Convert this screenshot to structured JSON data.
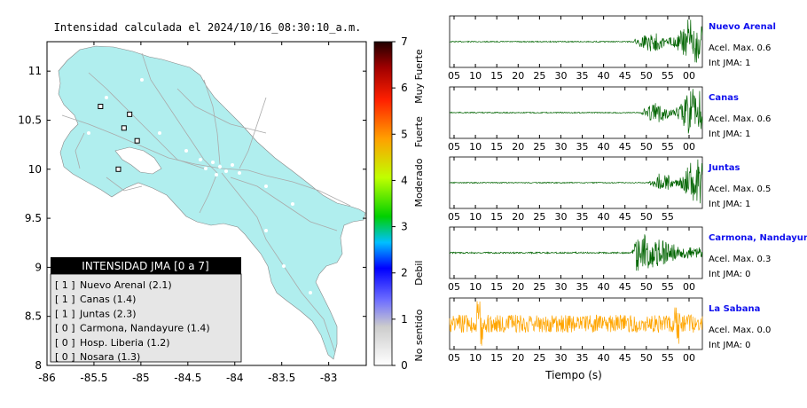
{
  "map": {
    "title": "Intensidad calculada el 2024/10/16_08:30:10_a.m.",
    "lon_ticks": [
      "-86",
      "-85.5",
      "-85",
      "-84.5",
      "-84",
      "-83.5",
      "-83"
    ],
    "lat_ticks": [
      "11",
      "10.5",
      "10",
      "9.5",
      "9",
      "8.5",
      "8"
    ],
    "colors": {
      "land": "#b0eeee",
      "roads": "#aaaaaa",
      "legend_header_bg": "#000000",
      "legend_bg": "#e6e6e6"
    },
    "legend": {
      "header": "INTENSIDAD JMA [0 a 7]",
      "items": [
        {
          "code": "[ 1 ]",
          "label": "Nuevo Arenal (2.1)"
        },
        {
          "code": "[ 1 ]",
          "label": "Canas (1.4)"
        },
        {
          "code": "[ 1 ]",
          "label": "Juntas (2.3)"
        },
        {
          "code": "[ 0 ]",
          "label": "Carmona, Nandayure (1.4)"
        },
        {
          "code": "[ 0 ]",
          "label": "Hosp. Liberia (1.2)"
        },
        {
          "code": "[ 0 ]",
          "label": "Nosara (1.3)"
        }
      ]
    }
  },
  "colorbar": {
    "ticks": [
      "0",
      "1",
      "2",
      "3",
      "4",
      "5",
      "6",
      "7"
    ],
    "categories": [
      "No sentido",
      "Debil",
      "Moderado",
      "Fuerte",
      "Muy Fuerte"
    ]
  },
  "seismograms": {
    "xlabel": "Tiempo (s)",
    "stations": [
      {
        "name": "Nuevo Arenal",
        "acel": "Acel. Max. 0.6",
        "int": "Int JMA: 1",
        "color": "#006400",
        "ticks": [
          "05",
          "10",
          "15",
          "20",
          "25",
          "30",
          "35",
          "40",
          "45",
          "50",
          "55",
          "00"
        ],
        "onset": 0.73,
        "noise": 0.02,
        "peak": 0.95
      },
      {
        "name": "Canas",
        "acel": "Acel. Max. 0.6",
        "int": "Int JMA: 1",
        "color": "#006400",
        "ticks": [
          "05",
          "10",
          "15",
          "20",
          "25",
          "30",
          "35",
          "40",
          "45",
          "50",
          "55",
          "00"
        ],
        "onset": 0.76,
        "noise": 0.02,
        "peak": 0.95
      },
      {
        "name": "Juntas",
        "acel": "Acel. Max. 0.5",
        "int": "Int JMA: 1",
        "color": "#006400",
        "ticks": [
          "05",
          "10",
          "15",
          "20",
          "25",
          "30",
          "35",
          "40",
          "45",
          "50",
          "55"
        ],
        "onset": 0.79,
        "noise": 0.02,
        "peak": 0.95
      },
      {
        "name": "Carmona, Nandayure",
        "acel": "Acel. Max. 0.3",
        "int": "Int JMA: 0",
        "color": "#006400",
        "ticks": [
          "05",
          "10",
          "15",
          "20",
          "25",
          "30",
          "35",
          "40",
          "45",
          "50",
          "55",
          "00"
        ],
        "onset": 0.72,
        "noise": 0.03,
        "peak": 0.8
      },
      {
        "name": "La Sabana",
        "acel": "Acel. Max. 0.0",
        "int": "Int JMA: 0",
        "color": "#ffa500",
        "ticks": [
          "05",
          "10",
          "15",
          "20",
          "25",
          "30",
          "35",
          "40",
          "45",
          "50",
          "55",
          "00"
        ],
        "onset": -1,
        "noise": 0.35,
        "peak": 0.35
      }
    ]
  },
  "chart_data": [
    {
      "type": "scatter",
      "title": "Intensidad calculada el 2024/10/16_08:30:10_a.m.",
      "xlim": [
        -86,
        -82.6
      ],
      "ylim": [
        8,
        11.3
      ],
      "x_ticks": [
        -86,
        -85.5,
        -85,
        -84.5,
        -84,
        -83.5,
        -83
      ],
      "y_ticks": [
        8,
        8.5,
        9,
        9.5,
        10,
        10.5,
        11
      ],
      "legend_title": "INTENSIDAD JMA [0 a 7]",
      "stations_plotted": [
        {
          "x": -85.43,
          "y": 10.64
        },
        {
          "x": -85.12,
          "y": 10.56
        },
        {
          "x": -85.04,
          "y": 10.29
        },
        {
          "x": -85.18,
          "y": 10.42
        },
        {
          "x": -85.24,
          "y": 10.0
        }
      ]
    },
    {
      "type": "line",
      "xlabel": "Tiempo (s)",
      "series": [
        {
          "name": "Nuevo Arenal"
        },
        {
          "name": "Canas"
        },
        {
          "name": "Juntas"
        },
        {
          "name": "Carmona, Nandayure"
        },
        {
          "name": "La Sabana"
        }
      ]
    }
  ]
}
